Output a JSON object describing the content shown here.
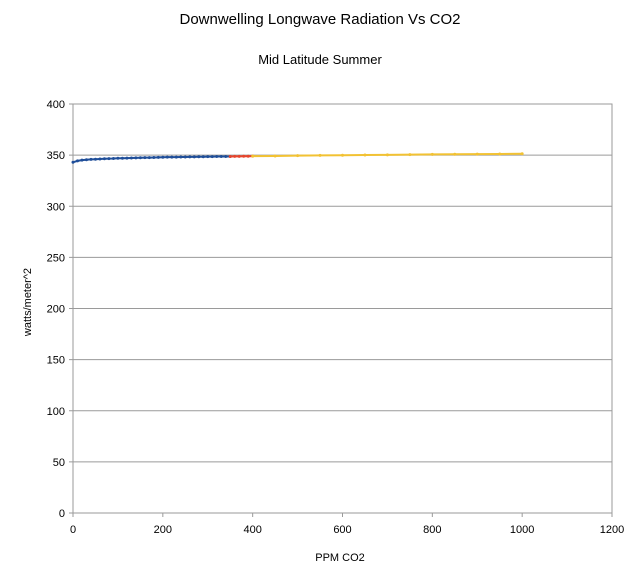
{
  "chart_data": {
    "type": "line",
    "title": "Downwelling Longwave Radiation Vs CO2",
    "subtitle": "Mid Latitude Summer",
    "xlabel": "PPM CO2",
    "ylabel": "watts/meter^2",
    "xlim": [
      0,
      1200
    ],
    "ylim": [
      0,
      400
    ],
    "xticks": [
      0,
      200,
      400,
      600,
      800,
      1000,
      1200
    ],
    "yticks": [
      0,
      50,
      100,
      150,
      200,
      250,
      300,
      350,
      400
    ],
    "grid": "horizontal",
    "legend": "none",
    "series": [
      {
        "color": "#1f4e99",
        "x": [
          0,
          10,
          20,
          30,
          40,
          50,
          60,
          70,
          80,
          90,
          100,
          110,
          120,
          130,
          140,
          150,
          160,
          170,
          180,
          190,
          200,
          210,
          220,
          230,
          240,
          250,
          260,
          270,
          280,
          290,
          300,
          310,
          320,
          330,
          340,
          350
        ],
        "y": [
          343.0,
          344.4,
          345.1,
          345.5,
          345.8,
          346.0,
          346.2,
          346.4,
          346.6,
          346.7,
          346.9,
          347.0,
          347.1,
          347.2,
          347.3,
          347.4,
          347.5,
          347.6,
          347.7,
          347.8,
          347.9,
          348.0,
          348.0,
          348.1,
          348.2,
          348.2,
          348.3,
          348.3,
          348.4,
          348.4,
          348.5,
          348.5,
          348.6,
          348.6,
          348.7,
          348.7
        ]
      },
      {
        "color": "#e8452c",
        "x": [
          350,
          360,
          370,
          380,
          390,
          400
        ],
        "y": [
          348.7,
          348.8,
          348.8,
          348.9,
          348.9,
          349.0
        ]
      },
      {
        "color": "#f2c233",
        "x": [
          400,
          450,
          500,
          550,
          600,
          650,
          700,
          750,
          800,
          850,
          900,
          950,
          1000
        ],
        "y": [
          349.0,
          349.2,
          349.5,
          349.7,
          349.9,
          350.1,
          350.3,
          350.5,
          350.7,
          350.8,
          351.0,
          351.1,
          351.3
        ]
      }
    ]
  }
}
